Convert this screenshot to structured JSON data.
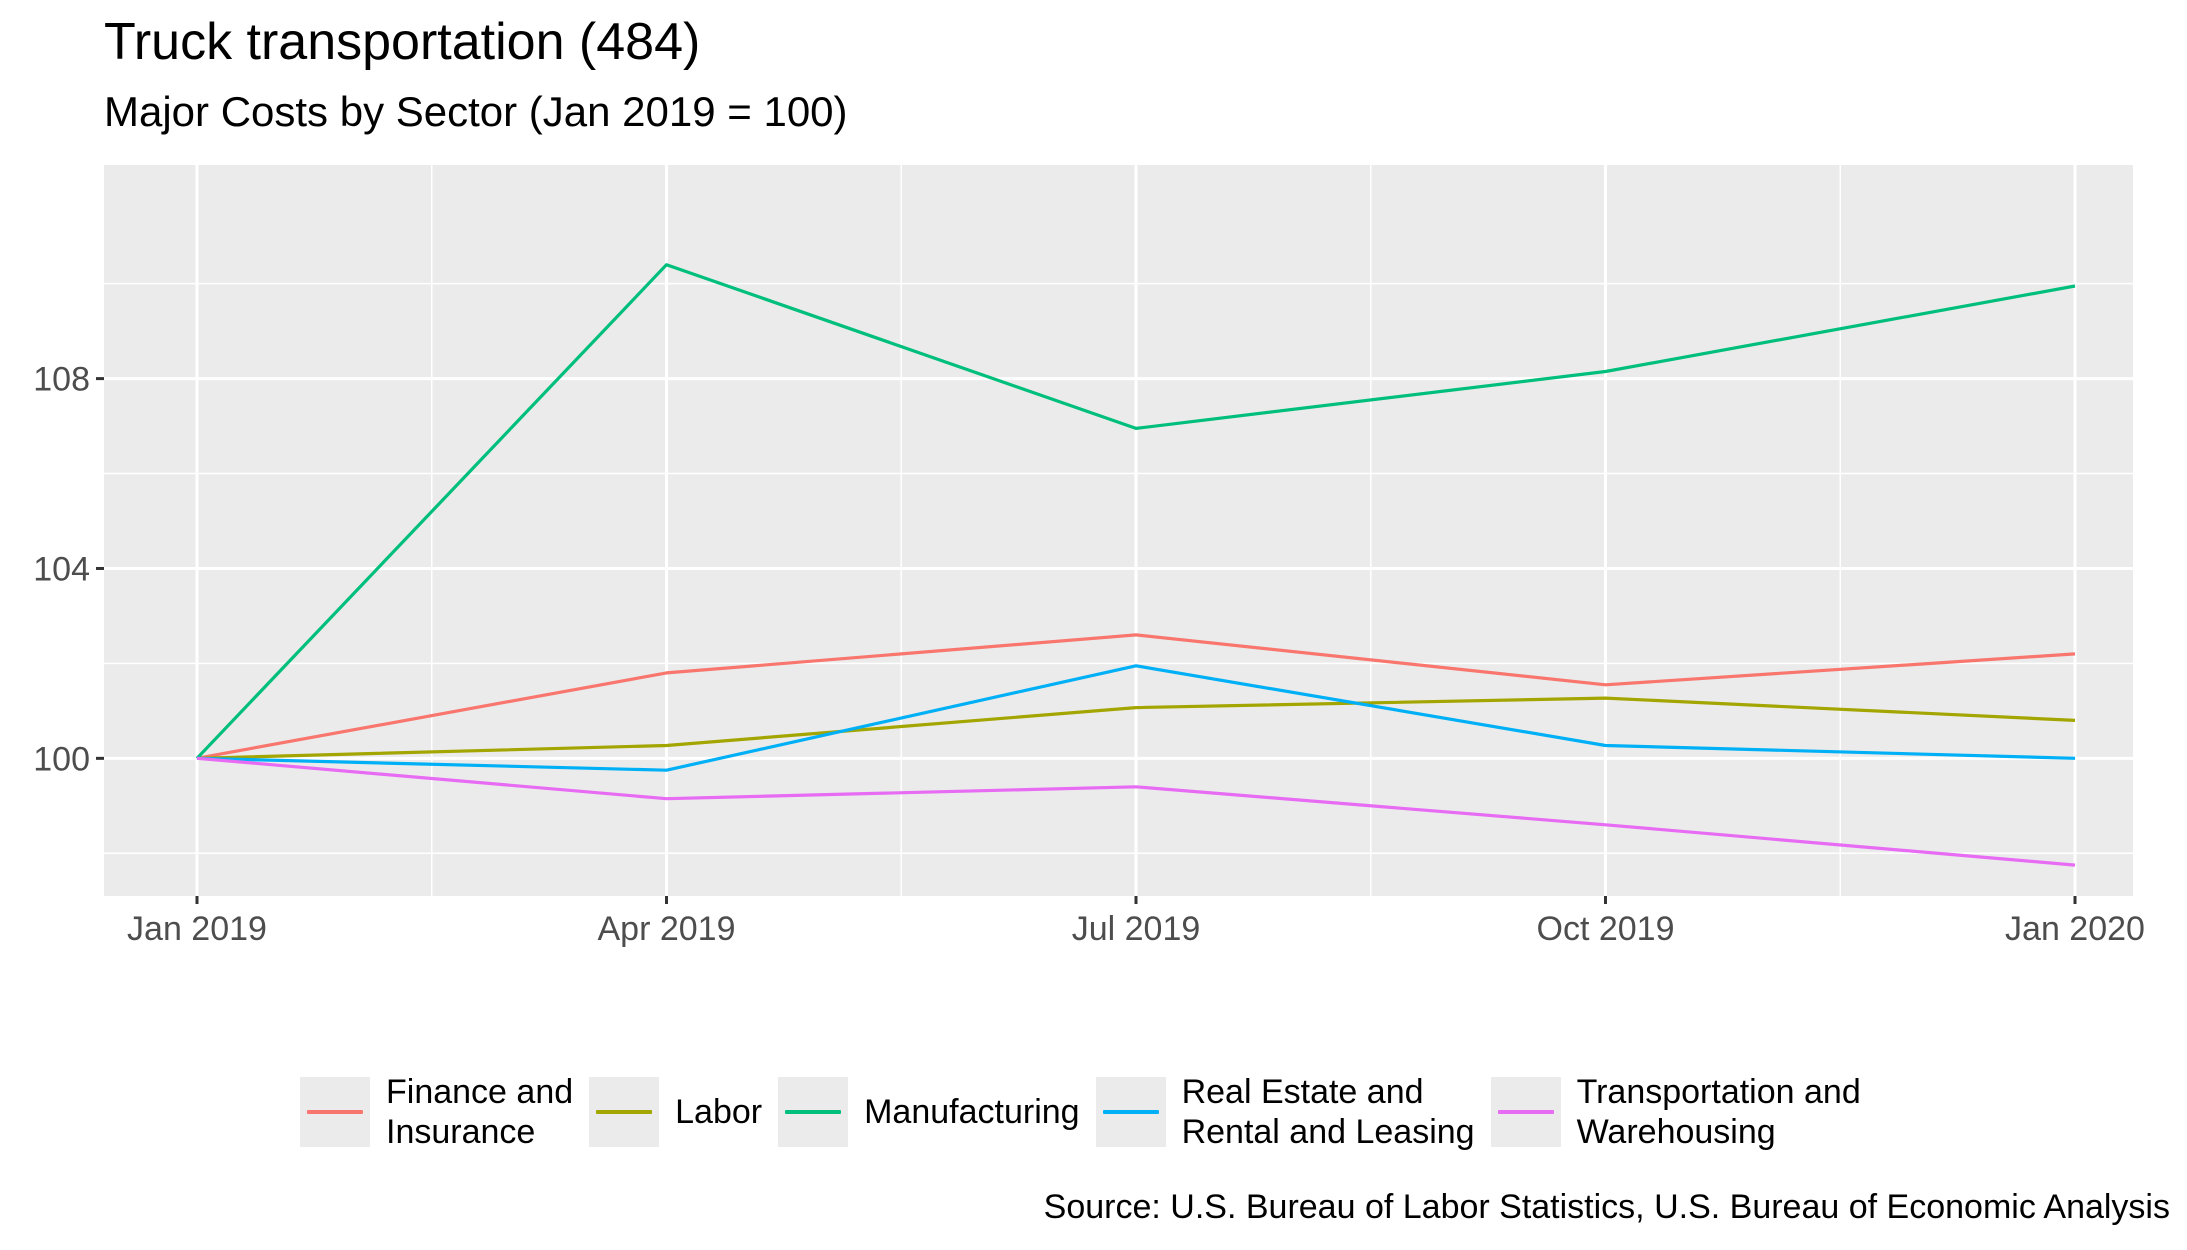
{
  "chart_data": {
    "type": "line",
    "title": "Truck transportation (484)",
    "subtitle": "Major Costs by Sector (Jan 2019 = 100)",
    "caption": "Source: U.S. Bureau of Labor Statistics, U.S. Bureau of Economic Analysis",
    "xlabel": "",
    "ylabel": "",
    "x": [
      "Jan 2019",
      "Apr 2019",
      "Jul 2019",
      "Oct 2019",
      "Jan 2020"
    ],
    "y_ticks": [
      100,
      104,
      108
    ],
    "y_tick_labels": [
      "100",
      "104",
      "108"
    ],
    "ylim": [
      97.1,
      112.5
    ],
    "grid": true,
    "legend_position": "bottom",
    "series": [
      {
        "name": "Finance and\nInsurance",
        "color": "#F8766D",
        "values": [
          100,
          101.8,
          102.6,
          101.55,
          102.2
        ]
      },
      {
        "name": "Labor",
        "color": "#A3A500",
        "values": [
          100,
          100.27,
          101.07,
          101.27,
          100.8
        ]
      },
      {
        "name": "Manufacturing",
        "color": "#00BF7D",
        "values": [
          100,
          110.4,
          106.95,
          108.15,
          109.95
        ]
      },
      {
        "name": "Real Estate and\nRental and Leasing",
        "color": "#00B0F6",
        "values": [
          100,
          99.75,
          101.95,
          100.27,
          100
        ]
      },
      {
        "name": "Transportation and\nWarehousing",
        "color": "#E76BF3",
        "values": [
          100,
          99.15,
          99.4,
          98.6,
          97.75
        ]
      }
    ]
  }
}
